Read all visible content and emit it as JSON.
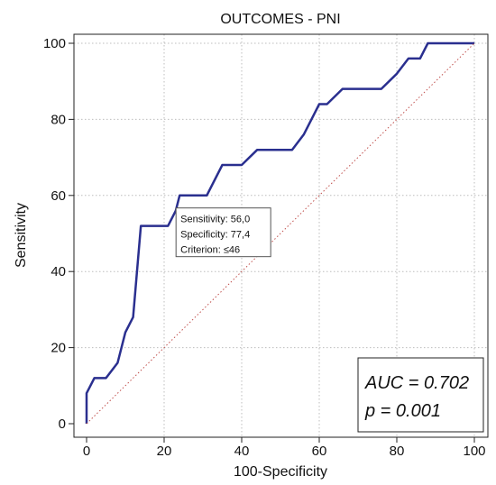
{
  "chart_data": {
    "type": "line",
    "title": "OUTCOMES - PNI",
    "xlabel": "100-Specificity",
    "ylabel": "Sensitivity",
    "xlim": [
      0,
      100
    ],
    "ylim": [
      0,
      100
    ],
    "xticks": [
      "0",
      "20",
      "40",
      "60",
      "80",
      "100"
    ],
    "yticks": [
      "0",
      "20",
      "40",
      "60",
      "80",
      "100"
    ],
    "grid": true,
    "series": [
      {
        "x": [
          0,
          0,
          2,
          5,
          8,
          10,
          12,
          14,
          21,
          23,
          24,
          26,
          31,
          35,
          38,
          40,
          44,
          53,
          56,
          60,
          62,
          66,
          76,
          80,
          83,
          86,
          88,
          100
        ],
        "y": [
          0,
          8,
          12,
          12,
          16,
          24,
          28,
          52,
          52,
          56,
          60,
          60,
          60,
          68,
          68,
          68,
          72,
          72,
          76,
          84,
          84,
          88,
          88,
          92,
          96,
          96,
          100,
          100
        ],
        "color": "#2a2f8f",
        "style": "solid"
      },
      {
        "x": [
          0,
          100
        ],
        "y": [
          0,
          100
        ],
        "color": "#c0504d",
        "style": "dotted"
      }
    ],
    "annotation": {
      "lines": [
        "Sensitivity: 56,0",
        "Specificity: 77,4",
        "Criterion: ≤46"
      ],
      "anchor_x": 22.6,
      "anchor_y": 56
    },
    "stats": [
      "AUC = 0.702",
      "p = 0.001"
    ]
  }
}
